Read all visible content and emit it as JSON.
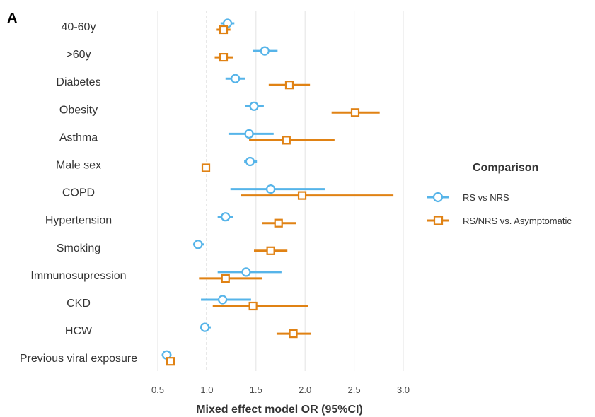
{
  "chart_data": {
    "type": "scatter",
    "panel_label": "A",
    "title": "",
    "xlabel": "Mixed effect model OR (95%CI)",
    "ylabel": "",
    "xlim": [
      0.5,
      3.0
    ],
    "x_ticks": [
      "0.5",
      "1.0",
      "1.5",
      "2.0",
      "2.5",
      "3.0"
    ],
    "reference_line": 1.0,
    "grid": "vertical",
    "legend": {
      "title": "Comparison",
      "placement": "right"
    },
    "categories": [
      "40-60y",
      ">60y",
      "Diabetes",
      "Obesity",
      "Asthma",
      "Male sex",
      "COPD",
      "Hypertension",
      "Smoking",
      "Immunosupression",
      "CKD",
      "HCW",
      "Previous viral exposure"
    ],
    "series": [
      {
        "name": "RS vs NRS",
        "color": "#56b4e9",
        "marker": "circle",
        "estimates": [
          1.21,
          1.59,
          1.29,
          1.48,
          1.43,
          1.44,
          1.65,
          1.19,
          0.91,
          1.4,
          1.16,
          0.98,
          0.59
        ],
        "lower": [
          1.14,
          1.47,
          1.19,
          1.39,
          1.22,
          1.38,
          1.24,
          1.11,
          0.86,
          1.11,
          0.94,
          0.93,
          0.54
        ],
        "upper": [
          1.28,
          1.72,
          1.39,
          1.58,
          1.68,
          1.51,
          2.2,
          1.27,
          0.97,
          1.76,
          1.45,
          1.04,
          0.64
        ]
      },
      {
        "name": "RS/NRS vs. Asymptomatic",
        "color": "#e08214",
        "marker": "square",
        "estimates": [
          1.17,
          1.17,
          1.84,
          2.51,
          1.81,
          0.99,
          1.97,
          1.73,
          1.65,
          1.19,
          1.47,
          1.88,
          0.63
        ],
        "lower": [
          1.1,
          1.08,
          1.63,
          2.27,
          1.43,
          0.96,
          1.35,
          1.56,
          1.48,
          0.92,
          1.06,
          1.71,
          0.59
        ],
        "upper": [
          1.24,
          1.27,
          2.05,
          2.76,
          2.3,
          1.03,
          2.9,
          1.91,
          1.82,
          1.56,
          2.03,
          2.06,
          0.67
        ]
      }
    ]
  }
}
